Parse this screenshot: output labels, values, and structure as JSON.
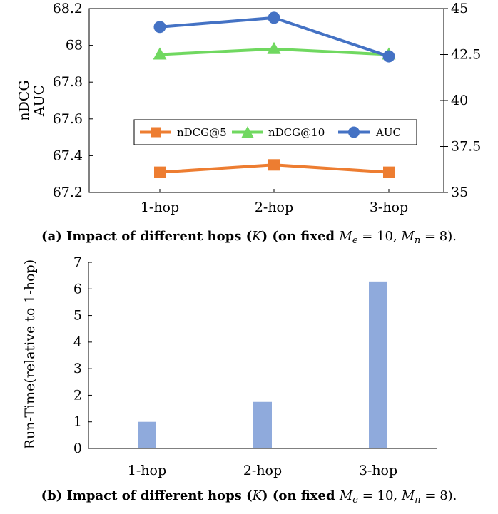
{
  "chart_data": [
    {
      "type": "line",
      "categories": [
        "1-hop",
        "2-hop",
        "3-hop"
      ],
      "ylabel": "nDCG",
      "ylabel2": "AUC",
      "ylim": [
        67.2,
        68.2
      ],
      "yticks": [
        "67.2",
        "67.4",
        "67.6",
        "67.8",
        "68"
      ],
      "y2lim": [
        35,
        45
      ],
      "y2ticks": [
        "35",
        "37.5",
        "40",
        "42.5",
        "45"
      ],
      "top_tick_left": "68.2",
      "legend_position": "center",
      "series": [
        {
          "name": "nDCG@5",
          "axis": "left",
          "color": "#ed7d31",
          "marker": "square",
          "values": [
            67.31,
            67.35,
            67.31
          ]
        },
        {
          "name": "nDCG@10",
          "axis": "left",
          "color": "#70d860",
          "marker": "triangle",
          "values": [
            67.95,
            67.98,
            67.95
          ]
        },
        {
          "name": "AUC",
          "axis": "right",
          "color": "#4472c4",
          "marker": "circle",
          "values": [
            44.0,
            44.5,
            42.4
          ]
        }
      ],
      "caption": {
        "label": "(a) Impact of different hops (",
        "K": "K",
        "mid": ") (on fixed ",
        "Me": "M",
        "e": "e",
        "eq1": " = 10, ",
        "Mn": "M",
        "n": "n",
        "eq2": " = 8)."
      }
    },
    {
      "type": "bar",
      "categories": [
        "1-hop",
        "2-hop",
        "3-hop"
      ],
      "values": [
        1.0,
        1.75,
        6.28
      ],
      "ylabel": "Run-Time(relative to 1-hop)",
      "ylim": [
        0,
        7
      ],
      "yticks": [
        "0",
        "1",
        "2",
        "3",
        "4",
        "5",
        "6",
        "7"
      ],
      "color": "#8faadc",
      "caption": {
        "label": "(b) Impact of different hops (",
        "K": "K",
        "mid": ") (on fixed ",
        "Me": "M",
        "e": "e",
        "eq1": " = 10, ",
        "Mn": "M",
        "n": "n",
        "eq2": " = 8)."
      }
    }
  ]
}
